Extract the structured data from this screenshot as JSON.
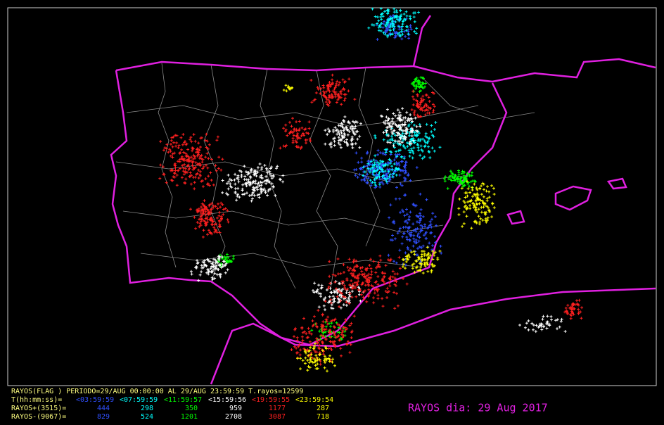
{
  "header": {
    "line": "RAYOS(FLAG ) PERIODO=29/AUG 00:00:00 AL 29/AUG 23:59:59  T.rayos=12599",
    "time_label": "T(hh:mm:ss)=",
    "periods": [
      "<03:59:59",
      "<07:59:59",
      "<11:59:57",
      "<15:59:56",
      "<19:59:55",
      "<23:59:54"
    ],
    "positive_label": "RAYOS+(3515)=",
    "positive": [
      "444",
      "298",
      "350",
      "959",
      "1177",
      "287"
    ],
    "negative_label": "RAYOS-(9067)=",
    "negative": [
      "829",
      "524",
      "1201",
      "2708",
      "3087",
      "718"
    ]
  },
  "date_title": "RAYOS dia: 29 Aug 2017"
}
